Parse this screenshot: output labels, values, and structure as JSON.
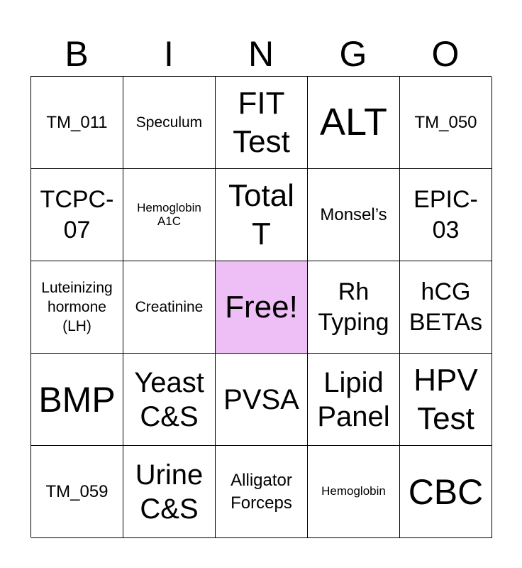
{
  "header": [
    "B",
    "I",
    "N",
    "G",
    "O"
  ],
  "free_color": "#eebef6",
  "cells": [
    {
      "text": "TM_011",
      "size": "s-sm2"
    },
    {
      "text": "Speculum",
      "size": "s-sm"
    },
    {
      "text": "FIT\nTest",
      "size": "s-lg2"
    },
    {
      "text": "ALT",
      "size": "s-xl2"
    },
    {
      "text": "TM_050",
      "size": "s-sm2"
    },
    {
      "text": "TCPC-\n07",
      "size": "s-md"
    },
    {
      "text": "Hemoglobin\nA1C",
      "size": "s-xs"
    },
    {
      "text": "Total\nT",
      "size": "s-lg2"
    },
    {
      "text": "Monsel’s",
      "size": "s-sm2"
    },
    {
      "text": "EPIC-\n03",
      "size": "s-md"
    },
    {
      "text": "Luteinizing\nhormone\n(LH)",
      "size": "s-sm"
    },
    {
      "text": "Creatinine",
      "size": "s-sm"
    },
    {
      "text": "Free!",
      "size": "s-lg2",
      "free": true
    },
    {
      "text": "Rh\nTyping",
      "size": "s-md"
    },
    {
      "text": "hCG\nBETAs",
      "size": "s-md"
    },
    {
      "text": "BMP",
      "size": "s-xl"
    },
    {
      "text": "Yeast\nC&S",
      "size": "s-lg"
    },
    {
      "text": "PVSA",
      "size": "s-lg"
    },
    {
      "text": "Lipid\nPanel",
      "size": "s-lg"
    },
    {
      "text": "HPV\nTest",
      "size": "s-lg2"
    },
    {
      "text": "TM_059",
      "size": "s-sm2"
    },
    {
      "text": "Urine\nC&S",
      "size": "s-lg"
    },
    {
      "text": "Alligator\nForceps",
      "size": "s-sm2"
    },
    {
      "text": "Hemoglobin",
      "size": "s-xs"
    },
    {
      "text": "CBC",
      "size": "s-xl"
    }
  ]
}
